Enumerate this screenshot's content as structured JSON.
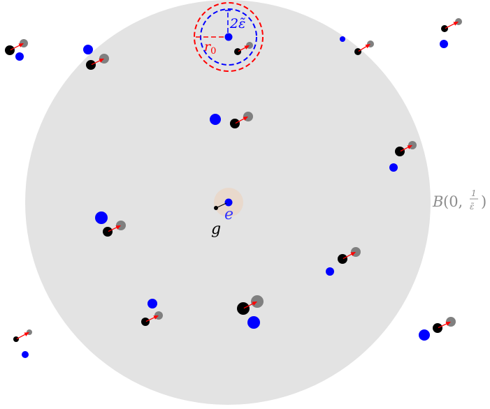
{
  "colors": {
    "ball": "#e3e3e3",
    "blue": "#0000ff",
    "black": "#000000",
    "grey": "#808080",
    "arrow": "#ff0000",
    "halo": "#e9d9cc",
    "label_grey": "#8c8c8c"
  },
  "labels": {
    "g": "g",
    "e": "e",
    "r0": "r",
    "r0_sub": "0",
    "two_eps": "2ε̃",
    "ball_B": "B",
    "ball_args": "(0, ",
    "ball_num": "1",
    "ball_den": "ε̃",
    "ball_close": ")"
  }
}
